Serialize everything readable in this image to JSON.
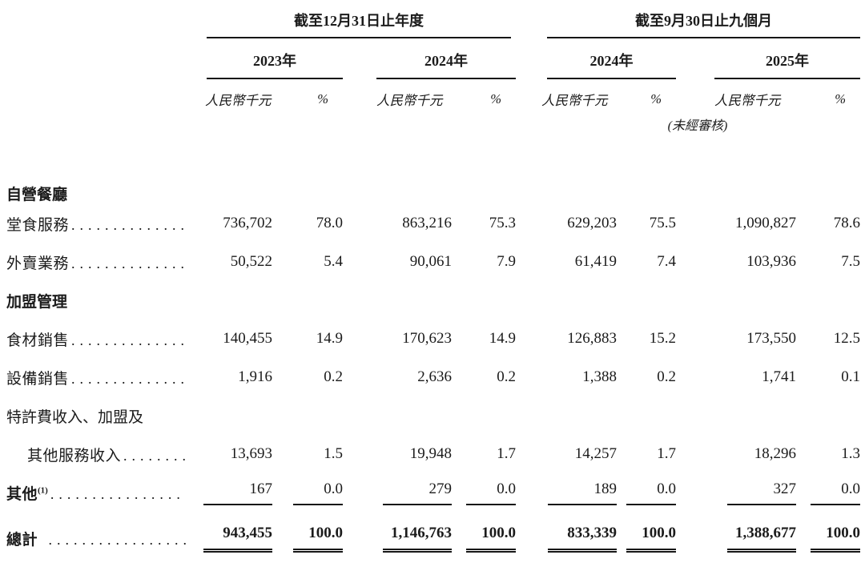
{
  "page": {
    "background": "#ffffff",
    "ink": "#1b1b1b",
    "rule_color": "#161616"
  },
  "table": {
    "groups": [
      {
        "title": "截至12月31日止年度",
        "years": [
          "2023年",
          "2024年"
        ]
      },
      {
        "title": "截至9月30日止九個月",
        "years": [
          "2024年",
          "2025年"
        ]
      }
    ],
    "col_headers": {
      "amount": "人民幣千元",
      "percent": "%",
      "unaudited_note": "(未經審核)"
    },
    "rows": [
      {
        "type": "section",
        "label": "自營餐廳"
      },
      {
        "type": "data",
        "label": "堂食服務",
        "dots": "..............",
        "values": [
          "736,702",
          "78.0",
          "863,216",
          "75.3",
          "629,203",
          "75.5",
          "1,090,827",
          "78.6"
        ]
      },
      {
        "type": "data",
        "label": "外賣業務",
        "dots": "..............",
        "values": [
          "50,522",
          "5.4",
          "90,061",
          "7.9",
          "61,419",
          "7.4",
          "103,936",
          "7.5"
        ]
      },
      {
        "type": "section",
        "label": "加盟管理"
      },
      {
        "type": "data",
        "label": "食材銷售",
        "dots": "..............",
        "values": [
          "140,455",
          "14.9",
          "170,623",
          "14.9",
          "126,883",
          "15.2",
          "173,550",
          "12.5"
        ]
      },
      {
        "type": "data",
        "label": "設備銷售",
        "dots": "..............",
        "values": [
          "1,916",
          "0.2",
          "2,636",
          "0.2",
          "1,388",
          "0.2",
          "1,741",
          "0.1"
        ]
      },
      {
        "type": "wrap",
        "label": "特許費收入、加盟及"
      },
      {
        "type": "data",
        "label": "其他服務收入",
        "indent": true,
        "dots": "........",
        "values": [
          "13,693",
          "1.5",
          "19,948",
          "1.7",
          "14,257",
          "1.7",
          "18,296",
          "1.3"
        ]
      },
      {
        "type": "data",
        "label": "其他",
        "sup": "(1)",
        "bold_label": true,
        "underline": "single",
        "dots": "................",
        "values": [
          "167",
          "0.0",
          "279",
          "0.0",
          "189",
          "0.0",
          "327",
          "0.0"
        ]
      },
      {
        "type": "data",
        "label": "總計",
        "bold_label": true,
        "bold_values": true,
        "underline": "double",
        "dots": " .................",
        "values": [
          "943,455",
          "100.0",
          "1,146,763",
          "100.0",
          "833,339",
          "100.0",
          "1,388,677",
          "100.0"
        ]
      }
    ]
  }
}
